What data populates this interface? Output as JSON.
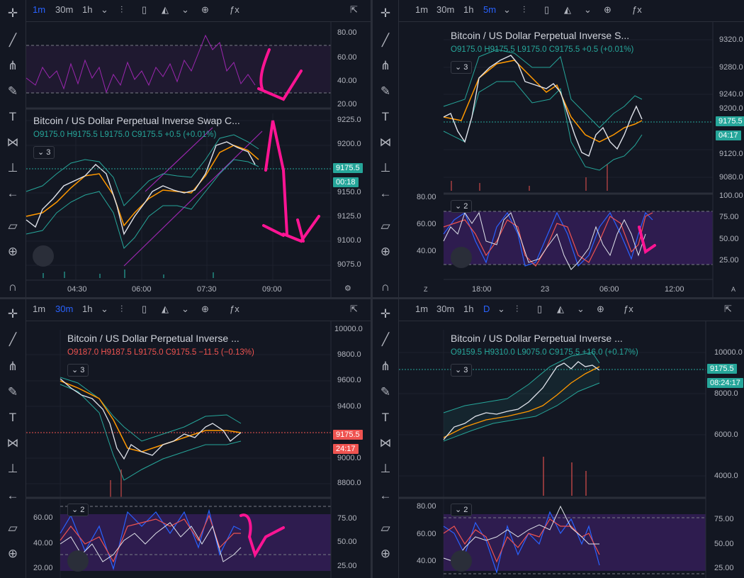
{
  "timeframes": {
    "m1": "1m",
    "m30": "30m",
    "h1": "1h",
    "m5": "5m",
    "d": "D"
  },
  "icons": [
    "crosshair-icon",
    "trendline-icon",
    "pitchfork-icon",
    "brush-icon",
    "text-icon",
    "pattern-icon",
    "measure-icon",
    "back-arrow-icon",
    "ruler-icon",
    "zoom-icon",
    "magnet-icon"
  ],
  "symbol_full": "Bitcoin / US Dollar Perpetual Inverse Swap C...",
  "symbol_s": "Bitcoin / US Dollar Perpetual Inverse S...",
  "symbol_short": "Bitcoin / US Dollar Perpetual Inverse ...",
  "q1": {
    "ohlc": "O9175.0  H9175.5  L9175.0  C9175.5  +0.5 (+0.01%)",
    "badge": "3",
    "price_tag": "9175.5",
    "countdown": "00:18",
    "rsi_ticks": [
      "80.00",
      "60.00",
      "40.00",
      "20.00"
    ],
    "price_ticks": [
      "9225.0",
      "9200.0",
      "9175.0",
      "9150.0",
      "9125.0",
      "9100.0",
      "9075.0"
    ],
    "time_ticks": [
      "04:30",
      "06:00",
      "07:30",
      "09:00"
    ]
  },
  "q2": {
    "ohlc": "O9175.0  H9175.5  L9175.0  C9175.5  +0.5 (+0.01%)",
    "badge": "3",
    "badge2": "2",
    "price_tag": "9175.5",
    "countdown": "04:17",
    "price_ticks": [
      "9320.0",
      "9280.0",
      "9240.0",
      "9200.0",
      "9120.0",
      "9080.0"
    ],
    "osc_left": [
      "80.00",
      "60.00",
      "40.00"
    ],
    "osc_right": [
      "100.00",
      "75.00",
      "50.00",
      "25.00"
    ],
    "time_ticks": [
      "18:00",
      "23",
      "06:00",
      "12:00"
    ],
    "z": "Z",
    "a": "A"
  },
  "q3": {
    "ohlc": "O9187.0  H9187.5  L9175.0  C9175.5  −11.5 (−0.13%)",
    "badge": "3",
    "badge2": "2",
    "price_tag": "9175.5",
    "countdown": "24:17",
    "price_ticks": [
      "10000.0",
      "9800.0",
      "9600.0",
      "9400.0",
      "9200.0",
      "9000.0",
      "8800.0"
    ],
    "osc_left": [
      "60.00",
      "40.00",
      "20.00"
    ],
    "osc_right": [
      "75.00",
      "50.00",
      "25.00"
    ]
  },
  "q4": {
    "ohlc": "O9159.5  H9310.0  L9075.0  C9175.5  +16.0 (+0.17%)",
    "badge": "3",
    "badge2": "2",
    "price_tag": "9175.5",
    "countdown": "08:24:17",
    "price_ticks": [
      "10000.0",
      "8000.0",
      "6000.0",
      "4000.0"
    ],
    "osc_left": [
      "80.00",
      "60.00",
      "40.00"
    ],
    "osc_right": [
      "75.00",
      "50.00",
      "25.00"
    ]
  },
  "colors": {
    "bg": "#131722",
    "grid": "#2a2e39",
    "up": "#26a69a",
    "down": "#ef5350",
    "accent": "#2962ff",
    "purple": "#9c27b0",
    "pink": "#ff1493",
    "orange": "#ff9800"
  }
}
